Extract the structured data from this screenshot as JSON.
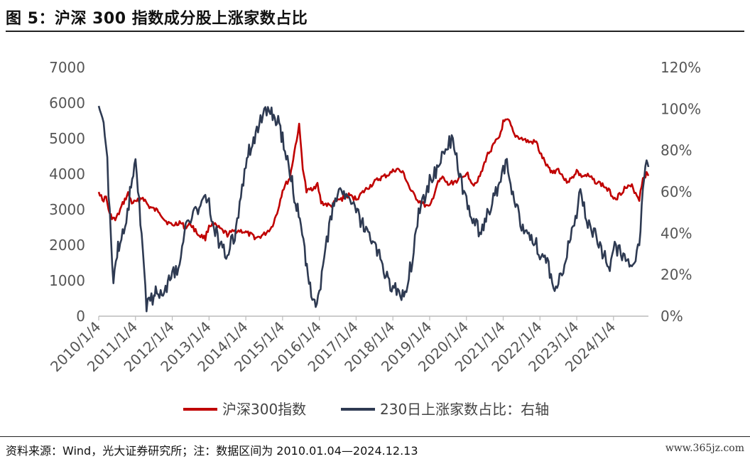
{
  "header": {
    "title": "图 5：沪深 300 指数成分股上涨家数占比"
  },
  "footer": {
    "source": "资料来源：Wind，光大证券研究所；注：数据区间为 2010.01.04—2024.12.13",
    "watermark": "www.365jz.com"
  },
  "colors": {
    "series_index": "#c00000",
    "series_ratio": "#2e3a52",
    "axis": "#bbbbbb",
    "tick": "#555555"
  },
  "chart_data": {
    "type": "line",
    "title": "沪深 300 指数成分股上涨家数占比",
    "x_ticks": [
      "2010/1/4",
      "2011/1/4",
      "2012/1/4",
      "2013/1/4",
      "2014/1/4",
      "2015/1/4",
      "2016/1/4",
      "2017/1/4",
      "2018/1/4",
      "2019/1/4",
      "2020/1/4",
      "2021/1/4",
      "2022/1/4",
      "2023/1/4",
      "2024/1/4"
    ],
    "x_range": [
      2010.0,
      2024.95
    ],
    "y_left": {
      "min": 0,
      "max": 7000,
      "ticks": [
        "0",
        "1000",
        "2000",
        "3000",
        "4000",
        "5000",
        "6000",
        "7000"
      ]
    },
    "y_right": {
      "min": 0,
      "max": 1.2,
      "ticks": [
        "0%",
        "20%",
        "40%",
        "60%",
        "80%",
        "100%",
        "120%"
      ]
    },
    "legend_position": "bottom",
    "series": [
      {
        "name": "沪深300指数",
        "axis": "left",
        "x": [
          2010.0,
          2010.1,
          2010.2,
          2010.3,
          2010.45,
          2010.55,
          2010.65,
          2010.8,
          2010.9,
          2011.0,
          2011.2,
          2011.35,
          2011.5,
          2011.65,
          2011.8,
          2012.0,
          2012.2,
          2012.35,
          2012.5,
          2012.7,
          2012.9,
          2013.0,
          2013.1,
          2013.3,
          2013.5,
          2013.7,
          2013.9,
          2014.0,
          2014.3,
          2014.5,
          2014.7,
          2014.85,
          2015.0,
          2015.2,
          2015.35,
          2015.45,
          2015.55,
          2015.65,
          2015.8,
          2015.95,
          2016.05,
          2016.3,
          2016.5,
          2016.8,
          2017.0,
          2017.3,
          2017.6,
          2017.9,
          2018.1,
          2018.3,
          2018.5,
          2018.7,
          2018.9,
          2019.0,
          2019.2,
          2019.35,
          2019.5,
          2019.7,
          2019.9,
          2020.0,
          2020.2,
          2020.4,
          2020.55,
          2020.7,
          2020.9,
          2021.0,
          2021.15,
          2021.3,
          2021.5,
          2021.7,
          2021.9,
          2022.0,
          2022.2,
          2022.35,
          2022.5,
          2022.7,
          2022.85,
          2023.0,
          2023.1,
          2023.3,
          2023.5,
          2023.7,
          2023.9,
          2024.0,
          2024.1,
          2024.3,
          2024.5,
          2024.7,
          2024.8,
          2024.9,
          2024.95
        ],
        "y": [
          3550,
          3250,
          3350,
          2850,
          2700,
          2900,
          3150,
          3450,
          3200,
          3200,
          3350,
          3100,
          3000,
          2950,
          2700,
          2550,
          2650,
          2500,
          2600,
          2300,
          2200,
          2550,
          2600,
          2450,
          2300,
          2400,
          2400,
          2350,
          2200,
          2300,
          2500,
          2900,
          3550,
          3900,
          4800,
          5350,
          4200,
          3500,
          3600,
          3700,
          3200,
          3100,
          3250,
          3400,
          3300,
          3600,
          3850,
          4000,
          4150,
          4000,
          3500,
          3250,
          3100,
          3050,
          3700,
          3900,
          3700,
          3800,
          3900,
          4050,
          3700,
          4000,
          4500,
          4750,
          5050,
          5450,
          5500,
          5100,
          5000,
          4900,
          4900,
          4600,
          4200,
          4050,
          4150,
          3800,
          3850,
          4100,
          3950,
          3950,
          3800,
          3700,
          3500,
          3350,
          3350,
          3600,
          3650,
          3300,
          3900,
          4000,
          3950
        ]
      },
      {
        "name": "230日上涨家数占比：右轴",
        "axis": "right",
        "x": [
          2010.0,
          2010.1,
          2010.2,
          2010.3,
          2010.4,
          2010.5,
          2010.55,
          2010.65,
          2010.75,
          2010.85,
          2011.0,
          2011.1,
          2011.2,
          2011.3,
          2011.4,
          2011.5,
          2011.55,
          2011.65,
          2011.75,
          2011.85,
          2012.0,
          2012.2,
          2012.4,
          2012.6,
          2012.8,
          2013.0,
          2013.1,
          2013.3,
          2013.5,
          2013.7,
          2013.9,
          2014.0,
          2014.3,
          2014.5,
          2014.7,
          2014.85,
          2015.0,
          2015.2,
          2015.35,
          2015.5,
          2015.6,
          2015.75,
          2015.9,
          2016.0,
          2016.2,
          2016.4,
          2016.6,
          2016.8,
          2017.0,
          2017.3,
          2017.6,
          2017.9,
          2018.1,
          2018.3,
          2018.5,
          2018.7,
          2018.9,
          2019.0,
          2019.2,
          2019.4,
          2019.6,
          2019.8,
          2020.0,
          2020.2,
          2020.4,
          2020.5,
          2020.7,
          2020.9,
          2021.0,
          2021.1,
          2021.3,
          2021.5,
          2021.7,
          2021.9,
          2022.0,
          2022.2,
          2022.4,
          2022.6,
          2022.8,
          2023.0,
          2023.1,
          2023.3,
          2023.5,
          2023.7,
          2023.9,
          2024.0,
          2024.2,
          2024.4,
          2024.6,
          2024.7,
          2024.8,
          2024.9,
          2024.95
        ],
        "y": [
          0.98,
          0.92,
          0.85,
          0.5,
          0.15,
          0.3,
          0.35,
          0.4,
          0.45,
          0.6,
          0.75,
          0.55,
          0.3,
          0.06,
          0.1,
          0.08,
          0.12,
          0.1,
          0.12,
          0.15,
          0.2,
          0.25,
          0.45,
          0.5,
          0.55,
          0.55,
          0.45,
          0.35,
          0.3,
          0.4,
          0.6,
          0.75,
          0.9,
          0.98,
          0.97,
          0.95,
          0.85,
          0.7,
          0.55,
          0.45,
          0.3,
          0.15,
          0.05,
          0.1,
          0.35,
          0.55,
          0.62,
          0.55,
          0.5,
          0.4,
          0.3,
          0.15,
          0.12,
          0.1,
          0.25,
          0.5,
          0.6,
          0.65,
          0.7,
          0.8,
          0.85,
          0.7,
          0.55,
          0.45,
          0.4,
          0.45,
          0.55,
          0.65,
          0.7,
          0.75,
          0.55,
          0.45,
          0.4,
          0.35,
          0.3,
          0.25,
          0.15,
          0.2,
          0.35,
          0.5,
          0.6,
          0.45,
          0.4,
          0.3,
          0.25,
          0.35,
          0.3,
          0.25,
          0.3,
          0.35,
          0.6,
          0.75,
          0.72
        ]
      }
    ]
  }
}
